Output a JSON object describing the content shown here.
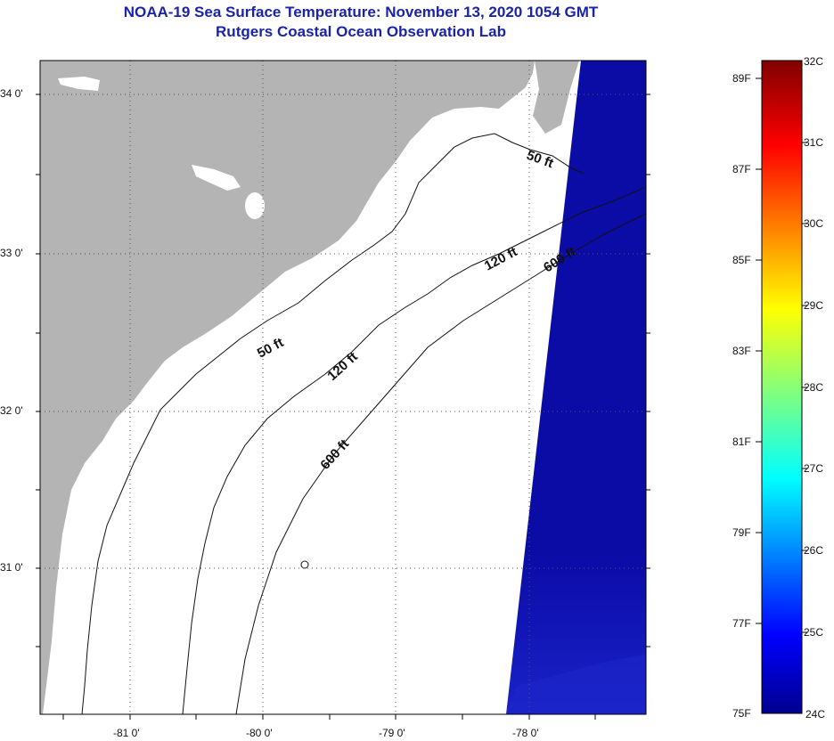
{
  "title": {
    "line1": "NOAA-19 Sea Surface Temperature:  November 13, 2020 1054 GMT",
    "line2": "Rutgers Coastal Ocean Observation Lab"
  },
  "map": {
    "lat_labels": [
      "34 0'",
      "33 0'",
      "32 0'",
      "31 0'"
    ],
    "lon_labels": [
      "-81 0'",
      "-80 0'",
      "-79 0'",
      "-78 0'"
    ],
    "contours": [
      "50 ft",
      "50 ft",
      "120 ft",
      "120 ft",
      "600 ft",
      "600 ft"
    ],
    "colors": {
      "land": "#b4b4b4",
      "water": "#ffffff",
      "sst_cold": "#0a0aa8"
    }
  },
  "colorbar": {
    "fahrenheit": [
      "89F",
      "87F",
      "85F",
      "83F",
      "81F",
      "79F",
      "77F",
      "75F"
    ],
    "celsius": [
      "32C",
      "31C",
      "30C",
      "29C",
      "28C",
      "27C",
      "26C",
      "25C",
      "24C"
    ],
    "range_c": [
      24,
      32
    ],
    "colormap": "jet"
  }
}
